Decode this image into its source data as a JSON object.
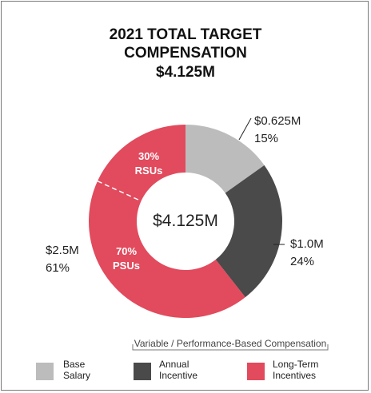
{
  "chart_data": {
    "type": "pie",
    "title": [
      "2021 TOTAL TARGET",
      "COMPENSATION",
      "$4.125M"
    ],
    "center_label": "$4.125M",
    "slices": [
      {
        "key": "base",
        "legend": [
          "Base",
          "Salary"
        ],
        "value": 0.625,
        "amount": "$0.625M",
        "percent": "15%",
        "color": "#bcbcbc"
      },
      {
        "key": "annual",
        "legend": [
          "Annual",
          "Incentive"
        ],
        "value": 1.0,
        "amount": "$1.0M",
        "percent": "24%",
        "color": "#4a4a4a"
      },
      {
        "key": "ltip",
        "legend": [
          "Long-Term",
          "Incentives"
        ],
        "value": 2.5,
        "amount": "$2.5M",
        "percent": "61%",
        "color": "#e24a5d",
        "sub_split": [
          {
            "label": [
              "30%",
              "RSUs"
            ],
            "fraction": 0.3
          },
          {
            "label": [
              "70%",
              "PSUs"
            ],
            "fraction": 0.7
          }
        ]
      }
    ],
    "bracket_label": "Variable / Performance-Based Compensation",
    "legend_position": "bottom"
  }
}
